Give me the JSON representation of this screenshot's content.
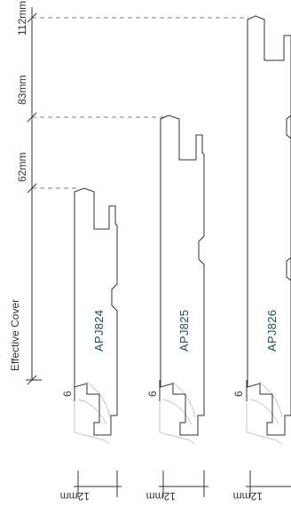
{
  "diagram": {
    "axis_label": "Effective Cover",
    "heights": [
      {
        "label": "112mm"
      },
      {
        "label": "83mm"
      },
      {
        "label": "62mm"
      }
    ],
    "profiles": [
      {
        "code": "APJ824",
        "fill": "#c3c9ce",
        "lip_label": "6",
        "width_label": "12mm"
      },
      {
        "code": "APJ825",
        "fill": "#ececeb",
        "lip_label": "6",
        "width_label": "12mm"
      },
      {
        "code": "APJ826",
        "fill": "#ffffff",
        "lip_label": "6",
        "width_label": "12mm"
      }
    ],
    "colors": {
      "line": "#333333",
      "dash": "#555555",
      "profile_text": "#1e4a5a"
    }
  }
}
